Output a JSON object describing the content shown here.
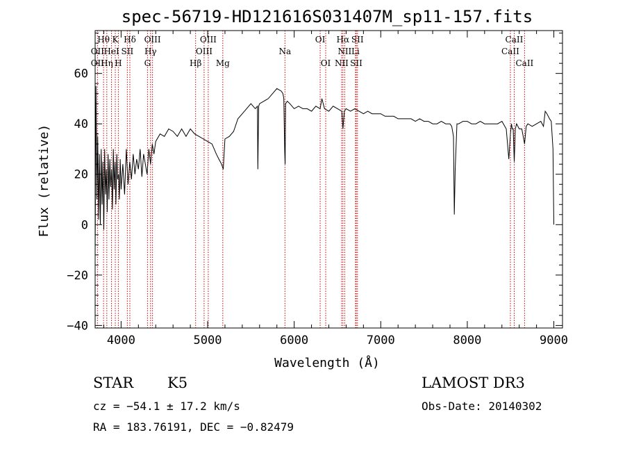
{
  "chart_data": {
    "type": "line",
    "title": "spec-56719-HD121616S031407M_sp11-157.fits",
    "xlabel": "Wavelength (Å)",
    "ylabel": "Flux (relative)",
    "xlim": [
      3700,
      9100
    ],
    "ylim": [
      -41,
      77
    ],
    "xticks": [
      4000,
      5000,
      6000,
      7000,
      8000,
      9000
    ],
    "yticks": [
      -40,
      -20,
      0,
      20,
      40,
      60
    ],
    "series": [
      {
        "x": [
          3700,
          3710,
          3720,
          3730,
          3740,
          3750,
          3760,
          3770,
          3780,
          3790,
          3800,
          3810,
          3820,
          3830,
          3840,
          3850,
          3860,
          3870,
          3880,
          3890,
          3900,
          3910,
          3920,
          3930,
          3940,
          3950,
          3960,
          3970,
          3980,
          3990,
          4000,
          4020,
          4040,
          4060,
          4080,
          4100,
          4120,
          4140,
          4160,
          4180,
          4200,
          4220,
          4240,
          4260,
          4280,
          4300,
          4320,
          4340,
          4360,
          4380,
          4400,
          4450,
          4500,
          4550,
          4600,
          4650,
          4700,
          4750,
          4800,
          4850,
          4900,
          4950,
          5000,
          5050,
          5100,
          5130,
          5160,
          5180,
          5200,
          5250,
          5300,
          5350,
          5400,
          5450,
          5500,
          5550,
          5575,
          5580,
          5590,
          5600,
          5650,
          5700,
          5750,
          5800,
          5850,
          5870,
          5880,
          5890,
          5895,
          5900,
          5920,
          5950,
          6000,
          6050,
          6100,
          6150,
          6200,
          6250,
          6300,
          6320,
          6350,
          6400,
          6450,
          6500,
          6550,
          6563,
          6580,
          6600,
          6650,
          6700,
          6750,
          6800,
          6850,
          6900,
          6950,
          7000,
          7050,
          7100,
          7150,
          7200,
          7250,
          7300,
          7350,
          7400,
          7450,
          7500,
          7550,
          7600,
          7650,
          7700,
          7750,
          7800,
          7820,
          7840,
          7850,
          7860,
          7880,
          7900,
          7950,
          8000,
          8050,
          8100,
          8150,
          8200,
          8250,
          8300,
          8350,
          8400,
          8450,
          8480,
          8498,
          8510,
          8520,
          8530,
          8542,
          8555,
          8570,
          8600,
          8630,
          8662,
          8680,
          8700,
          8750,
          8800,
          8850,
          8880,
          8900,
          8920,
          8950,
          8970,
          8990,
          9000
        ],
        "y": [
          -12,
          55,
          10,
          35,
          2,
          28,
          0,
          30,
          8,
          25,
          -2,
          30,
          12,
          22,
          5,
          28,
          10,
          26,
          15,
          22,
          6,
          30,
          14,
          25,
          8,
          28,
          18,
          20,
          10,
          26,
          14,
          24,
          12,
          30,
          16,
          25,
          18,
          28,
          20,
          26,
          22,
          30,
          19,
          28,
          24,
          20,
          30,
          24,
          32,
          28,
          33,
          36,
          35,
          38,
          37,
          35,
          38,
          35,
          38,
          36,
          35,
          34,
          33,
          32,
          28,
          26,
          24,
          22,
          34,
          35,
          37,
          42,
          44,
          46,
          48,
          46,
          47,
          22,
          47,
          48,
          49,
          50,
          52,
          54,
          53,
          52,
          50,
          30,
          24,
          48,
          49,
          48,
          46,
          47,
          46,
          46,
          45,
          47,
          46,
          50,
          46,
          45,
          47,
          46,
          45,
          38,
          45,
          46,
          45,
          46,
          45,
          44,
          45,
          44,
          44,
          44,
          43,
          43,
          43,
          42,
          42,
          42,
          42,
          41,
          42,
          41,
          41,
          40,
          40,
          41,
          40,
          40,
          39,
          35,
          4,
          22,
          40,
          40,
          41,
          41,
          40,
          40,
          41,
          40,
          40,
          40,
          40,
          41,
          38,
          26,
          36,
          40,
          38,
          38,
          25,
          38,
          40,
          38,
          38,
          32,
          39,
          40,
          39,
          40,
          41,
          39,
          45,
          44,
          42,
          41,
          30,
          0
        ]
      }
    ],
    "line_labels": [
      {
        "text": "Hθ",
        "x": 3797,
        "row": 1
      },
      {
        "text": "K",
        "x": 3933,
        "row": 1
      },
      {
        "text": "Hδ",
        "x": 4101,
        "row": 1
      },
      {
        "text": "OIII",
        "x": 4363,
        "row": 1
      },
      {
        "text": "OIII",
        "x": 5007,
        "row": 1
      },
      {
        "text": "OI",
        "x": 6300,
        "row": 1
      },
      {
        "text": "Hα",
        "x": 6563,
        "row": 1
      },
      {
        "text": "SII",
        "x": 6731,
        "row": 1
      },
      {
        "text": "CaII",
        "x": 8542,
        "row": 1
      },
      {
        "text": "OII",
        "x": 3727,
        "row": 2
      },
      {
        "text": "HeI",
        "x": 3889,
        "row": 2
      },
      {
        "text": "SII",
        "x": 4072,
        "row": 2
      },
      {
        "text": "Hγ",
        "x": 4340,
        "row": 2
      },
      {
        "text": "OIII",
        "x": 4959,
        "row": 2
      },
      {
        "text": "Na",
        "x": 5893,
        "row": 2
      },
      {
        "text": "NII",
        "x": 6583,
        "row": 2
      },
      {
        "text": "Li",
        "x": 6708,
        "row": 2
      },
      {
        "text": "CaII",
        "x": 8498,
        "row": 2
      },
      {
        "text": "OII",
        "x": 3727,
        "row": 3
      },
      {
        "text": "Hη",
        "x": 3835,
        "row": 3
      },
      {
        "text": "H",
        "x": 3968,
        "row": 3
      },
      {
        "text": "G",
        "x": 4305,
        "row": 3
      },
      {
        "text": "Hβ",
        "x": 4861,
        "row": 3
      },
      {
        "text": "Mg",
        "x": 5175,
        "row": 3
      },
      {
        "text": "OI",
        "x": 6364,
        "row": 3
      },
      {
        "text": "NII",
        "x": 6548,
        "row": 3
      },
      {
        "text": "SII",
        "x": 6717,
        "row": 3
      },
      {
        "text": "CaII",
        "x": 8662,
        "row": 3
      }
    ],
    "line_positions": [
      3727,
      3797,
      3835,
      3889,
      3933,
      3968,
      4072,
      4101,
      4305,
      4340,
      4363,
      4861,
      4959,
      5007,
      5175,
      5893,
      6300,
      6364,
      6548,
      6563,
      6583,
      6708,
      6717,
      6731,
      8498,
      8542,
      8662
    ]
  },
  "info": {
    "object_class": "STAR",
    "subclass": "K5",
    "survey": "LAMOST DR3",
    "cz": "cz = −54.1 ± 17.2 km/s",
    "obs_date": "Obs-Date: 20140302",
    "coords": "RA = 183.76191, DEC =  −0.82479"
  },
  "colors": {
    "spectrum": "#000000",
    "line_marker": "#cc0000",
    "axes": "#000000"
  }
}
